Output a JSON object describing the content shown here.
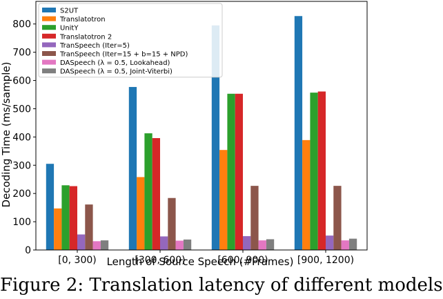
{
  "chart_data": {
    "type": "bar",
    "xlabel": "Length of Source Speech (#Frames)",
    "ylabel": "Decoding Time (ms/sample)",
    "ylim": [
      0,
      880
    ],
    "yticks": [
      0,
      100,
      200,
      300,
      400,
      500,
      600,
      700,
      800
    ],
    "categories": [
      "[0, 300)",
      "[300, 600)",
      "[600, 900)",
      "[900, 1200)"
    ],
    "legend_position": "top-left",
    "grid": false,
    "series": [
      {
        "name": "S2UT",
        "color": "#1f77b4",
        "values": [
          305,
          577,
          795,
          828
        ]
      },
      {
        "name": "Translatotron",
        "color": "#ff7f0e",
        "values": [
          147,
          258,
          354,
          389
        ]
      },
      {
        "name": "UnitY",
        "color": "#2ca02c",
        "values": [
          229,
          413,
          553,
          557
        ]
      },
      {
        "name": "Translatotron 2",
        "color": "#d62728",
        "values": [
          226,
          396,
          553,
          561
        ]
      },
      {
        "name": "TranSpeech (Iter=5)",
        "color": "#9467bd",
        "values": [
          55,
          48,
          49,
          51
        ]
      },
      {
        "name": "TranSpeech (Iter=15 + b=15 + NPD)",
        "color": "#8c564b",
        "values": [
          161,
          184,
          227,
          227
        ]
      },
      {
        "name": "DASpeech (λ = 0.5, Lookahead)",
        "color": "#e377c2",
        "values": [
          31,
          33,
          34,
          34
        ]
      },
      {
        "name": "DASpeech (λ = 0.5, Joint-Viterbi)",
        "color": "#7f7f7f",
        "values": [
          34,
          37,
          38,
          40
        ]
      }
    ]
  },
  "caption": {
    "text": "Figure 2: Translation latency of different models"
  }
}
